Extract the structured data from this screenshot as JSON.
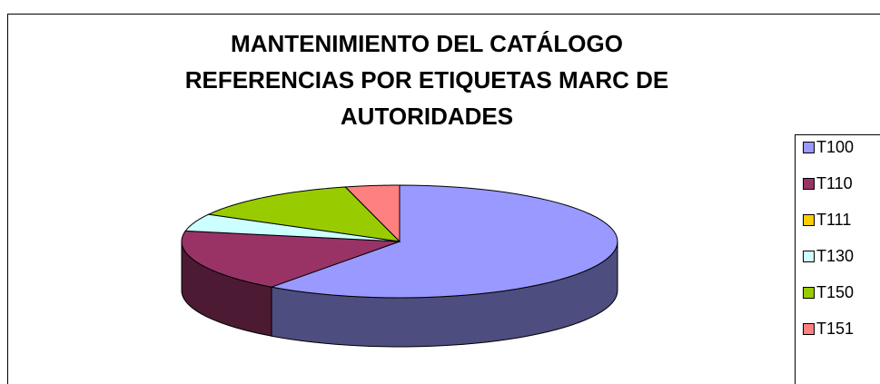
{
  "chart_data": {
    "type": "pie3d",
    "title": [
      "MANTENIMIENTO DEL CATÁLOGO",
      "REFERENCIAS POR ETIQUETAS MARC DE",
      "AUTORIDADES"
    ],
    "categories": [
      "T100",
      "T110",
      "T111",
      "T130",
      "T150",
      "T151"
    ],
    "values": [
      60,
      18,
      0,
      5,
      13,
      4
    ],
    "colors": [
      "#9999ff",
      "#993366",
      "#ffcc00",
      "#ccffff",
      "#99cc00",
      "#ff8080"
    ],
    "legend": "right"
  }
}
